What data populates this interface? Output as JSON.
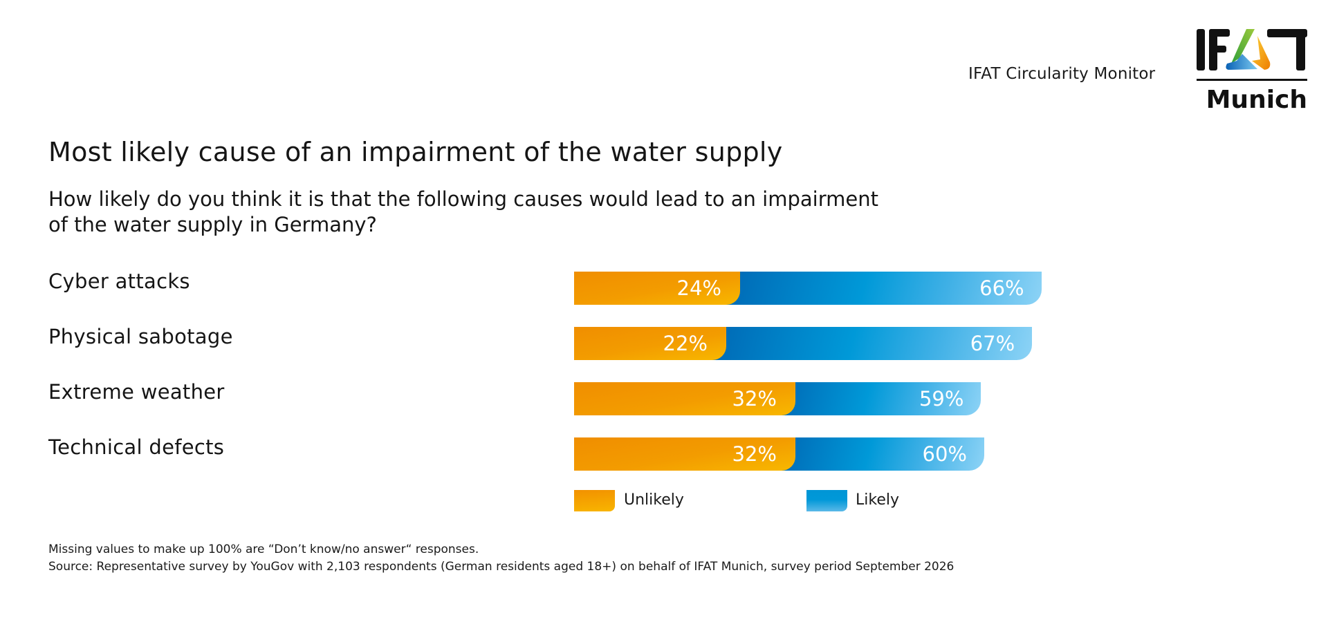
{
  "header": {
    "brand_text": "IFAT Circularity Monitor",
    "logo": {
      "wordmark_top": "IFAT",
      "wordmark_bottom": "Munich"
    }
  },
  "title": "Most likely cause of an impairment of the water supply",
  "subtitle_lines": [
    "How likely do you think it is that the following causes would lead to an impairment",
    "of the water supply in Germany?"
  ],
  "chart_data": {
    "type": "bar",
    "orientation": "horizontal",
    "stacked": true,
    "title": "Most likely cause of an impairment of the water supply",
    "categories": [
      "Cyber attacks",
      "Physical sabotage",
      "Extreme weather",
      "Technical defects"
    ],
    "series": [
      {
        "name": "Unlikely",
        "values": [
          24,
          22,
          32,
          32
        ],
        "unit": "%",
        "color": "#f39c00"
      },
      {
        "name": "Likely",
        "values": [
          66,
          67,
          59,
          60
        ],
        "unit": "%",
        "color": "#0099d8"
      }
    ],
    "value_labels": [
      [
        "24%",
        "66%"
      ],
      [
        "22%",
        "67%"
      ],
      [
        "32%",
        "59%"
      ],
      [
        "32%",
        "60%"
      ]
    ],
    "xlabel": "",
    "ylabel": "",
    "grid": false,
    "legend": {
      "position": "bottom",
      "entries": [
        "Unlikely",
        "Likely"
      ]
    }
  },
  "footnote": {
    "missing_values": "Missing values to make up 100% are “Don’t know/no answer“ responses.",
    "source": "Source: Representative survey by YouGov with 2,103 respondents (German residents aged 18+) on behalf of IFAT Munich, survey period September 2026"
  }
}
